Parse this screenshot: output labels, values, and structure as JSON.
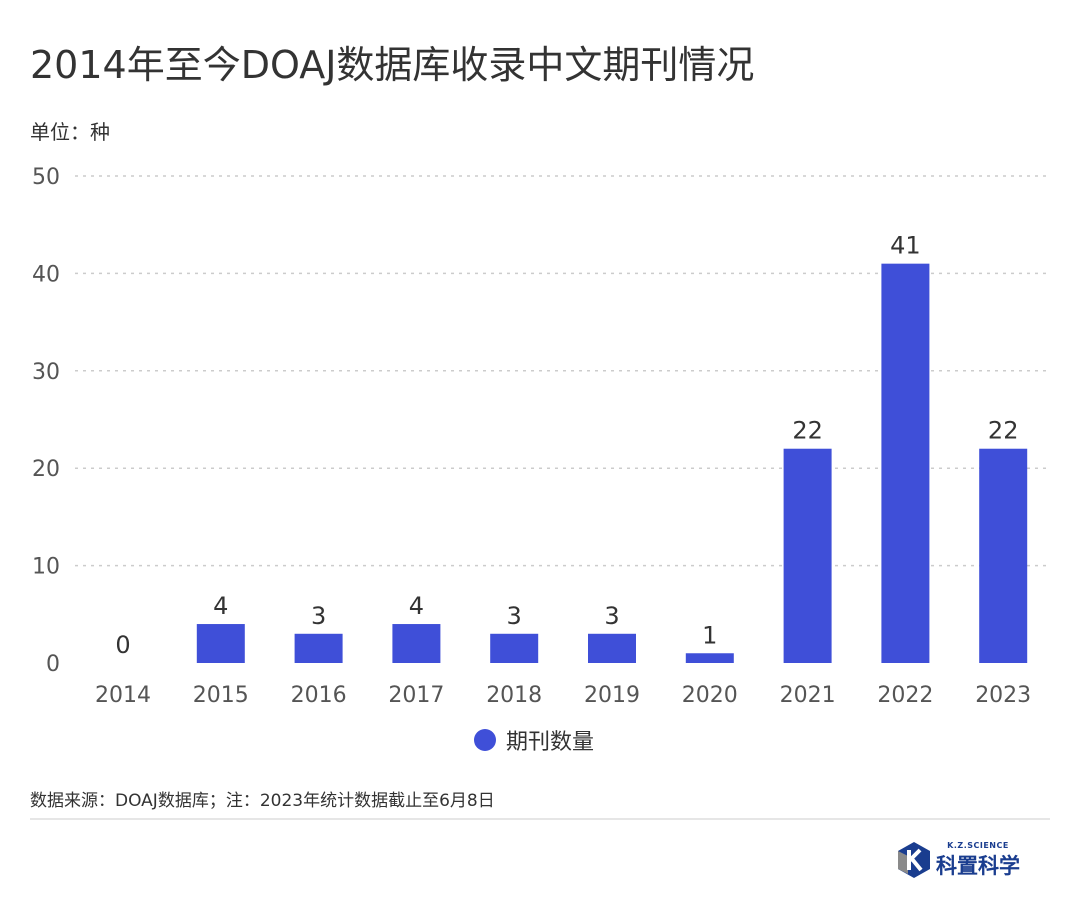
{
  "title": "2014年至今DOAJ数据库收录中文期刊情况",
  "unit_label": "单位：种",
  "source_note": "数据来源：DOAJ数据库；注：2023年统计数据截止至6月8日",
  "logo": {
    "en": "K.Z.SCIENCE",
    "cn": "科置科学"
  },
  "colors": {
    "bar": "#3f4fd8",
    "grid": "#cccccc",
    "logo": "#1a3d8f"
  },
  "chart_data": {
    "type": "bar",
    "categories": [
      "2014",
      "2015",
      "2016",
      "2017",
      "2018",
      "2019",
      "2020",
      "2021",
      "2022",
      "2023"
    ],
    "series": [
      {
        "name": "期刊数量",
        "values": [
          0,
          4,
          3,
          4,
          3,
          3,
          1,
          22,
          41,
          22
        ]
      }
    ],
    "ylim": [
      0,
      50
    ],
    "yticks": [
      0,
      10,
      20,
      30,
      40,
      50
    ],
    "grid": true,
    "data_labels": true,
    "legend": "bottom-center"
  }
}
